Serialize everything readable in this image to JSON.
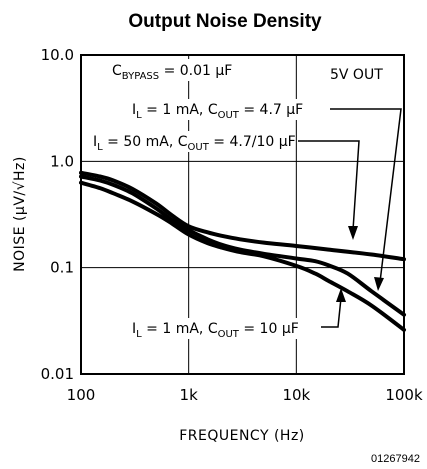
{
  "chart_data": {
    "type": "line",
    "title": "Output Noise Density",
    "xlabel": "FREQUENCY (Hz)",
    "ylabel": "NOISE (µV/√Hz)",
    "x_scale": "log",
    "y_scale": "log",
    "xlim": [
      100,
      100000
    ],
    "ylim": [
      0.01,
      10
    ],
    "x_ticks": [
      {
        "value": 100,
        "label": "100"
      },
      {
        "value": 1000,
        "label": "1k"
      },
      {
        "value": 10000,
        "label": "10k"
      },
      {
        "value": 100000,
        "label": "100k"
      }
    ],
    "y_ticks": [
      {
        "value": 10,
        "label": "10.0"
      },
      {
        "value": 1,
        "label": "1.0"
      },
      {
        "value": 0.1,
        "label": "0.1"
      },
      {
        "value": 0.01,
        "label": "0.01"
      }
    ],
    "grid": true,
    "conditions": {
      "bypass_main": "C",
      "bypass_sub": "BYPASS",
      "bypass_value": " = 0.01 µF",
      "output": "5V OUT"
    },
    "series": [
      {
        "name": "IL = 50 mA, COUT = 4.7/10 µF",
        "label_parts": [
          "I",
          "L",
          " = 50 mA, C",
          "OUT",
          " = 4.7/10 µF"
        ],
        "x": [
          100,
          150,
          200,
          300,
          500,
          700,
          1000,
          1500,
          2000,
          3000,
          5000,
          10000,
          20000,
          50000,
          100000
        ],
        "y": [
          0.78,
          0.72,
          0.66,
          0.55,
          0.4,
          0.31,
          0.245,
          0.215,
          0.2,
          0.185,
          0.172,
          0.16,
          0.148,
          0.133,
          0.12
        ]
      },
      {
        "name": "IL = 1 mA, COUT = 4.7 µF",
        "label_parts": [
          "I",
          "L",
          " = 1 mA, C",
          "OUT",
          " = 4.7 µF"
        ],
        "x": [
          100,
          150,
          200,
          300,
          500,
          700,
          1000,
          1500,
          2000,
          3000,
          5000,
          10000,
          15000,
          20000,
          30000,
          50000,
          100000
        ],
        "y": [
          0.72,
          0.66,
          0.6,
          0.5,
          0.36,
          0.28,
          0.225,
          0.185,
          0.165,
          0.148,
          0.135,
          0.122,
          0.115,
          0.105,
          0.088,
          0.06,
          0.036
        ]
      },
      {
        "name": "IL = 1 mA, COUT = 10 µF",
        "label_parts": [
          "I",
          "L",
          " = 1 mA, C",
          "OUT",
          " = 10 µF"
        ],
        "x": [
          100,
          150,
          200,
          300,
          500,
          700,
          1000,
          1500,
          2000,
          3000,
          5000,
          10000,
          15000,
          20000,
          30000,
          50000,
          100000
        ],
        "y": [
          0.63,
          0.56,
          0.5,
          0.42,
          0.32,
          0.26,
          0.205,
          0.17,
          0.155,
          0.14,
          0.128,
          0.104,
          0.088,
          0.075,
          0.06,
          0.044,
          0.026
        ]
      }
    ],
    "doc_code": "01267942"
  }
}
